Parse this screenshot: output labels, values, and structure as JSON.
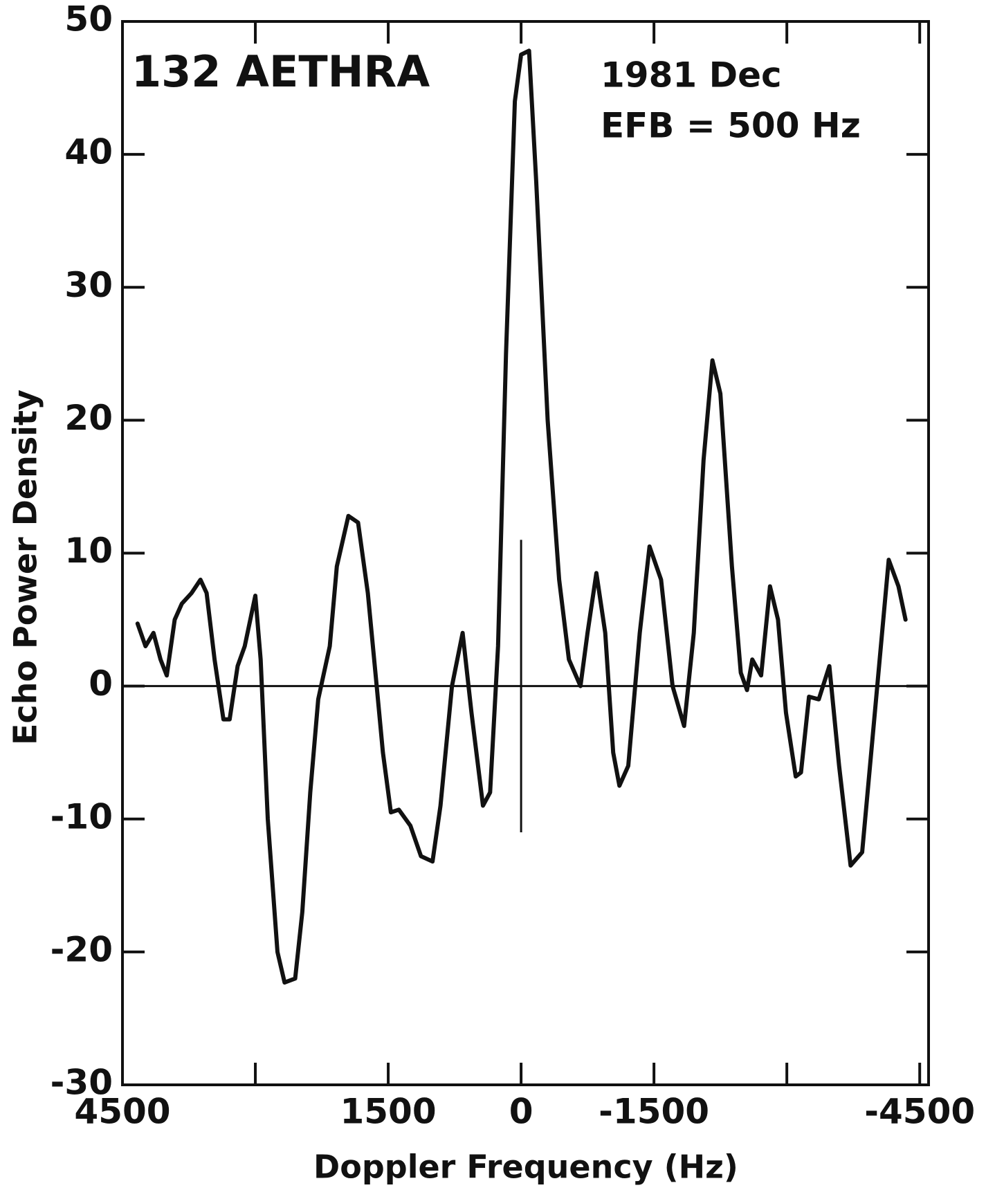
{
  "chart_data": {
    "type": "line",
    "annotations": [
      "132 AETHRA",
      "1981 Dec",
      "EFB = 500 Hz"
    ],
    "xlabel": "Doppler Frequency (Hz)",
    "ylabel": "Echo Power Density",
    "xlim": [
      4500,
      -4600
    ],
    "ylim": [
      -30,
      50
    ],
    "xticks": [
      4500,
      1500,
      0,
      -1500,
      -4500
    ],
    "xminor": [
      3000,
      -3000
    ],
    "yticks": [
      -30,
      -20,
      -10,
      0,
      10,
      20,
      30,
      40,
      50
    ],
    "zero_line": true,
    "center_marker": [
      -11,
      11
    ],
    "series": [
      {
        "color": "#111111",
        "x": [
          4330,
          4240,
          4150,
          4070,
          4000,
          3910,
          3830,
          3720,
          3620,
          3550,
          3460,
          3360,
          3290,
          3200,
          3120,
          3000,
          2940,
          2860,
          2750,
          2670,
          2550,
          2470,
          2380,
          2290,
          2160,
          2080,
          1950,
          1840,
          1730,
          1630,
          1560,
          1470,
          1380,
          1250,
          1130,
          1000,
          910,
          780,
          660,
          560,
          430,
          350,
          260,
          170,
          70,
          0,
          -90,
          -170,
          -300,
          -430,
          -540,
          -670,
          -750,
          -850,
          -950,
          -1040,
          -1110,
          -1210,
          -1340,
          -1450,
          -1580,
          -1710,
          -1840,
          -1950,
          -2060,
          -2160,
          -2250,
          -2380,
          -2480,
          -2550,
          -2610,
          -2710,
          -2810,
          -2900,
          -2990,
          -3100,
          -3160,
          -3250,
          -3360,
          -3480,
          -3590,
          -3720,
          -3850,
          -3980,
          -4150,
          -4260,
          -4340
        ],
        "values": [
          4.7,
          3,
          4,
          2,
          0.8,
          5,
          6.2,
          7,
          8,
          7,
          2,
          -2.5,
          -2.5,
          1.5,
          3,
          6.8,
          2,
          -10,
          -20,
          -22.3,
          -22,
          -17,
          -8,
          -1,
          3,
          9,
          12.8,
          12.3,
          7,
          0,
          -5,
          -9.5,
          -9.3,
          -10.5,
          -12.8,
          -13.2,
          -9,
          0,
          4,
          -2,
          -9,
          -8,
          3,
          25,
          44,
          47.5,
          47.8,
          38,
          20,
          8,
          2,
          0,
          4,
          8.5,
          4,
          -5,
          -7.5,
          -6,
          4,
          10.5,
          8,
          0,
          -3,
          4,
          17,
          24.5,
          22,
          9,
          1,
          -0.3,
          2,
          0.8,
          7.5,
          5,
          -2,
          -6.8,
          -6.5,
          -0.8,
          -1,
          1.5,
          -6,
          -13.5,
          -12.5,
          -3,
          9.5,
          7.5,
          5
        ]
      }
    ]
  }
}
